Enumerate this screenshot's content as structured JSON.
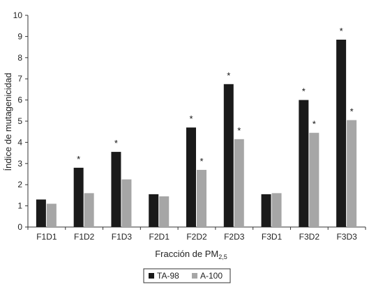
{
  "chart_data": {
    "type": "bar",
    "ylabel": "Índice de mutagenicidad",
    "xlabel_main": "Fracción de PM",
    "xlabel_sub": "2,5",
    "ylim": [
      0,
      10
    ],
    "yticks": [
      0,
      1,
      2,
      3,
      4,
      5,
      6,
      7,
      8,
      9,
      10
    ],
    "grid": false,
    "legend_position": "bottom-center",
    "categories": [
      "F1D1",
      "F1D2",
      "F1D3",
      "F2D1",
      "F2D2",
      "F2D3",
      "F3D1",
      "F3D2",
      "F3D3"
    ],
    "series": [
      {
        "name": "TA-98",
        "color": "#1a1a1a",
        "values": [
          1.3,
          2.8,
          3.55,
          1.55,
          4.7,
          6.75,
          1.55,
          6.0,
          8.85
        ],
        "significant": [
          false,
          true,
          true,
          false,
          true,
          true,
          false,
          true,
          true
        ]
      },
      {
        "name": "A-100",
        "color": "#a6a6a6",
        "values": [
          1.1,
          1.6,
          2.25,
          1.45,
          2.7,
          4.15,
          1.6,
          4.45,
          5.05
        ],
        "significant": [
          false,
          false,
          false,
          false,
          true,
          true,
          false,
          true,
          true
        ]
      }
    ],
    "significance_marker": "*"
  }
}
